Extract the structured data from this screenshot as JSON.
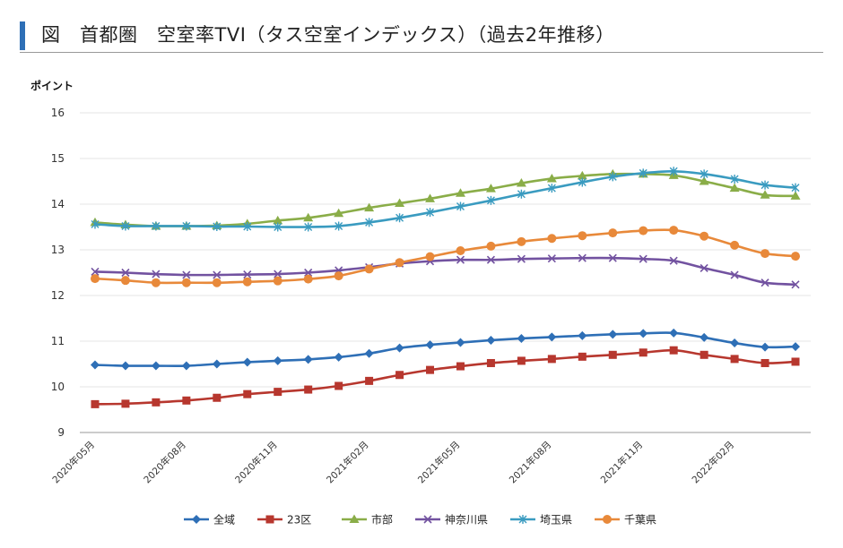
{
  "header": {
    "title": "図　首都圏　空室率TVI（タス空室インデックス）（過去2年推移）"
  },
  "colors": {
    "accent": "#2e6fb6",
    "series": [
      "#2e6fb6",
      "#b7372e",
      "#8aad48",
      "#7252a0",
      "#3a9bc0",
      "#e8893a"
    ],
    "grid": "#e6e6e6"
  },
  "chart_data": {
    "type": "line",
    "title": "首都圏　空室率TVI（タス空室インデックス）（過去2年推移）",
    "ylabel": "ポイント",
    "xlabel": "",
    "ylim": [
      9,
      16
    ],
    "yticks": [
      9,
      10,
      11,
      12,
      13,
      14,
      15,
      16
    ],
    "grid": true,
    "legend": "bottom",
    "x": [
      "2020年05月",
      "2020年06月",
      "2020年07月",
      "2020年08月",
      "2020年09月",
      "2020年10月",
      "2020年11月",
      "2020年12月",
      "2021年01月",
      "2021年02月",
      "2021年03月",
      "2021年04月",
      "2021年05月",
      "2021年06月",
      "2021年07月",
      "2021年08月",
      "2021年09月",
      "2021年10月",
      "2021年11月",
      "2021年12月",
      "2022年01月",
      "2022年02月",
      "2022年03月",
      "2022年04月"
    ],
    "xtick_labels": [
      "2020年05月",
      "2020年08月",
      "2020年11月",
      "2021年02月",
      "2021年05月",
      "2021年08月",
      "2021年11月",
      "2022年02月"
    ],
    "series": [
      {
        "name": "全域",
        "marker": "diamond",
        "values": [
          10.48,
          10.46,
          10.46,
          10.46,
          10.5,
          10.54,
          10.57,
          10.6,
          10.65,
          10.73,
          10.85,
          10.92,
          10.97,
          11.02,
          11.06,
          11.09,
          11.12,
          11.15,
          11.17,
          11.18,
          11.08,
          10.96,
          10.87,
          10.88
        ]
      },
      {
        "name": "23区",
        "marker": "square",
        "values": [
          9.62,
          9.63,
          9.66,
          9.7,
          9.76,
          9.84,
          9.89,
          9.94,
          10.02,
          10.13,
          10.26,
          10.37,
          10.45,
          10.52,
          10.57,
          10.61,
          10.66,
          10.7,
          10.75,
          10.8,
          10.7,
          10.61,
          10.52,
          10.55
        ]
      },
      {
        "name": "市部",
        "marker": "triangle",
        "values": [
          13.6,
          13.55,
          13.52,
          13.52,
          13.53,
          13.57,
          13.64,
          13.7,
          13.8,
          13.92,
          14.02,
          14.12,
          14.24,
          14.34,
          14.46,
          14.56,
          14.62,
          14.66,
          14.66,
          14.63,
          14.5,
          14.35,
          14.2,
          14.18
        ]
      },
      {
        "name": "神奈川県",
        "marker": "x",
        "values": [
          12.52,
          12.5,
          12.47,
          12.45,
          12.45,
          12.46,
          12.47,
          12.5,
          12.55,
          12.62,
          12.7,
          12.75,
          12.78,
          12.78,
          12.8,
          12.81,
          12.82,
          12.82,
          12.8,
          12.76,
          12.6,
          12.45,
          12.28,
          12.24
        ]
      },
      {
        "name": "埼玉県",
        "marker": "star",
        "values": [
          13.56,
          13.52,
          13.52,
          13.52,
          13.51,
          13.51,
          13.5,
          13.5,
          13.52,
          13.6,
          13.7,
          13.82,
          13.95,
          14.08,
          14.22,
          14.35,
          14.48,
          14.6,
          14.68,
          14.72,
          14.66,
          14.55,
          14.42,
          14.36
        ]
      },
      {
        "name": "千葉県",
        "marker": "circle",
        "values": [
          12.37,
          12.33,
          12.28,
          12.28,
          12.28,
          12.3,
          12.32,
          12.36,
          12.43,
          12.58,
          12.72,
          12.85,
          12.98,
          13.08,
          13.18,
          13.25,
          13.31,
          13.37,
          13.42,
          13.43,
          13.3,
          13.1,
          12.92,
          12.86
        ]
      }
    ]
  }
}
